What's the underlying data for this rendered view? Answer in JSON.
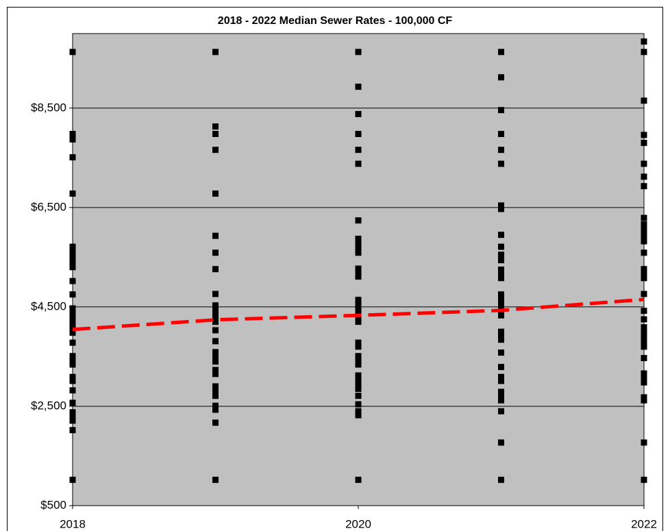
{
  "chart_data": {
    "type": "scatter",
    "title": "2018 - 2022 Median Sewer Rates - 100,000 CF",
    "xlim": [
      2018,
      2022
    ],
    "xticks": [
      2018,
      2020,
      2022
    ],
    "ylim": [
      500,
      10000
    ],
    "yticks": [
      {
        "value": 500,
        "label": "$500"
      },
      {
        "value": 2500,
        "label": "$2,500"
      },
      {
        "value": 4500,
        "label": "$4,500"
      },
      {
        "value": 6500,
        "label": "$6,500"
      },
      {
        "value": 8500,
        "label": "$8,500"
      }
    ],
    "grid": true,
    "plot_background": "#c0c0c0",
    "series": [
      {
        "color": "#000000",
        "x": 2018,
        "values": [
          9630,
          7980,
          7920,
          7870,
          7510,
          6780,
          5710,
          5630,
          5550,
          5470,
          5380,
          5300,
          5020,
          4750,
          4470,
          4390,
          4310,
          4220,
          4140,
          4060,
          3980,
          3780,
          3510,
          3420,
          3340,
          3090,
          3010,
          2820,
          2570,
          2380,
          2290,
          2210,
          2020,
          1020
        ]
      },
      {
        "color": "#000000",
        "x": 2019,
        "values": [
          9630,
          8130,
          7980,
          7660,
          6780,
          5930,
          5590,
          5260,
          4760,
          4530,
          4450,
          4360,
          4280,
          4200,
          4030,
          3810,
          3590,
          3490,
          3400,
          3230,
          3150,
          2900,
          2790,
          2710,
          2510,
          2430,
          2170,
          1020
        ]
      },
      {
        "color": "#000000",
        "x": 2020,
        "values": [
          9630,
          8930,
          8380,
          7980,
          7660,
          7380,
          6240,
          5870,
          5780,
          5700,
          5590,
          5270,
          5190,
          5110,
          4640,
          4560,
          4470,
          4390,
          4310,
          4200,
          3780,
          3700,
          3510,
          3420,
          3340,
          3120,
          3010,
          2930,
          2850,
          2710,
          2540,
          2400,
          2320,
          1020
        ]
      },
      {
        "color": "#000000",
        "x": 2021,
        "values": [
          9630,
          9120,
          8460,
          7980,
          7660,
          7380,
          6540,
          6470,
          5950,
          5710,
          5550,
          5440,
          5250,
          5160,
          5080,
          4750,
          4670,
          4580,
          4500,
          4420,
          4330,
          4000,
          3920,
          3840,
          3580,
          3290,
          3090,
          3010,
          2790,
          2710,
          2620,
          2400,
          1770,
          1020
        ]
      },
      {
        "color": "#000000",
        "x": 2022,
        "values": [
          9840,
          9630,
          8650,
          7960,
          7800,
          7380,
          7120,
          6930,
          6290,
          6160,
          6050,
          5930,
          5820,
          5590,
          5260,
          5160,
          5080,
          4760,
          4420,
          4250,
          4090,
          3990,
          3890,
          3780,
          3700,
          3470,
          3160,
          3070,
          2980,
          2680,
          2620,
          1770,
          1020
        ]
      }
    ],
    "median_line": {
      "color": "#ff0000",
      "dashed": true,
      "x": [
        2018,
        2019,
        2020,
        2021,
        2022
      ],
      "values": [
        4045,
        4240,
        4330,
        4430,
        4650
      ]
    }
  }
}
